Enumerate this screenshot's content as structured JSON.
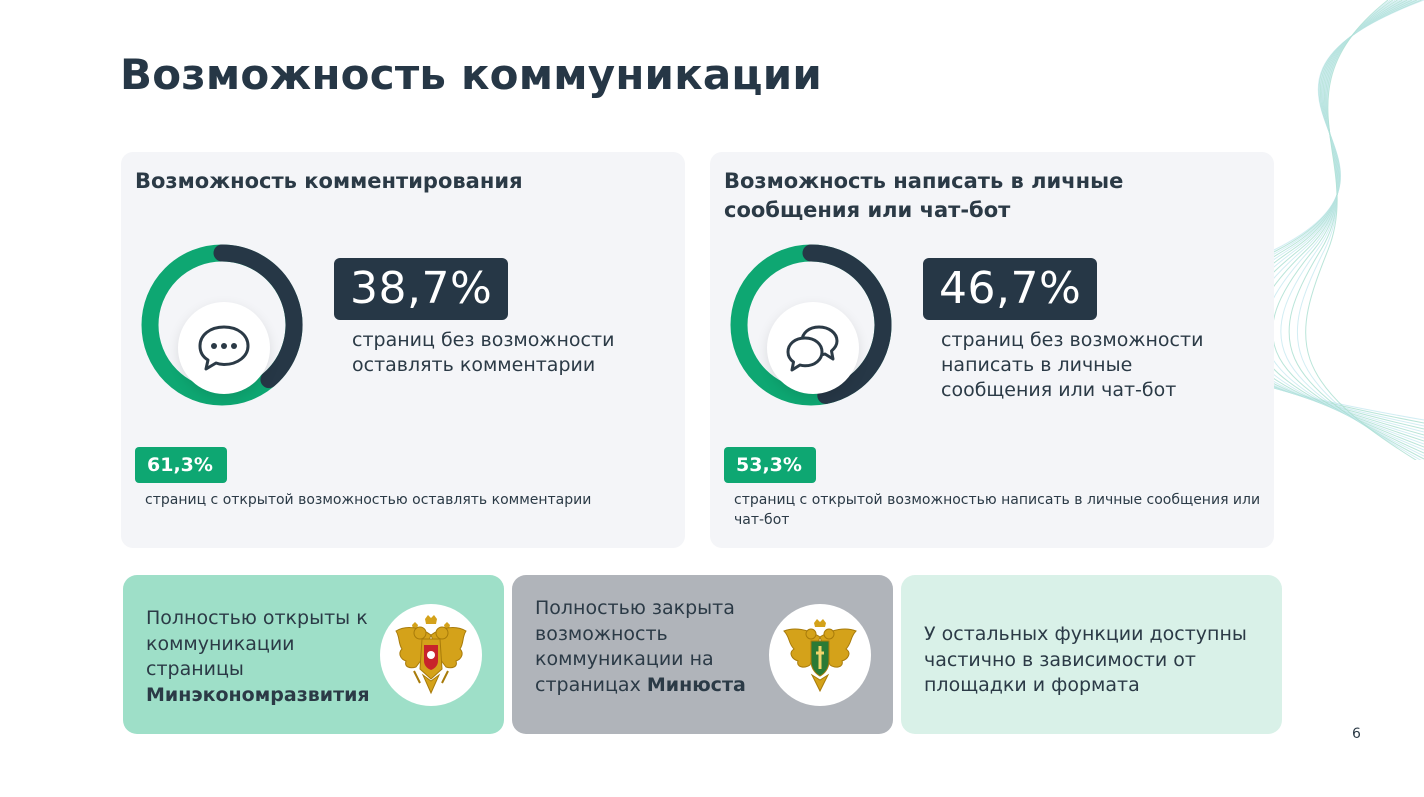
{
  "title": "Возможность коммуникации",
  "colors": {
    "accent_green": "#0ea772",
    "dark": "#263746",
    "card_bg": "#f4f5f8"
  },
  "chart_data": [
    {
      "type": "pie",
      "title": "Возможность комментирования",
      "slices": [
        {
          "label": "страниц без возможности оставлять комментарии",
          "value": 38.7,
          "color": "#263746"
        },
        {
          "label": "страниц с открытой возможностью оставлять комментарии",
          "value": 61.3,
          "color": "#0ea772"
        }
      ],
      "big_value": "38,7%",
      "big_label": "страниц без возможности оставлять комментарии",
      "small_value": "61,3%",
      "small_label": "страниц с открытой возможностью оставлять комментарии",
      "icon": "speech-bubble-dots-icon"
    },
    {
      "type": "pie",
      "title": "Возможность написать в личные сообщения или чат-бот",
      "slices": [
        {
          "label": "страниц без возможности написать в личные сообщения или чат-бот",
          "value": 46.7,
          "color": "#263746"
        },
        {
          "label": "страниц с открытой возможностью написать в личные сообщения или чат-бот",
          "value": 53.3,
          "color": "#0ea772"
        }
      ],
      "big_value": "46,7%",
      "big_label": "страниц без возможности написать в личные сообщения или чат-бот",
      "small_value": "53,3%",
      "small_label": "страниц с открытой возможностью написать в личные сообщения или чат-бот",
      "icon": "two-speech-bubbles-icon"
    }
  ],
  "boxes": [
    {
      "text": "Полностью открыты к коммуникации страницы ",
      "bold": "Минэкономразвития",
      "emblem": "russia-coat-of-arms-icon"
    },
    {
      "text": "Полностью закрыта возможность коммуникации на страницах ",
      "bold": "Минюста",
      "emblem": "ministry-of-justice-emblem-icon"
    },
    {
      "text": "У остальных функции доступны частично в зависимости от площадки и формата",
      "bold": ""
    }
  ],
  "page_number": "6"
}
